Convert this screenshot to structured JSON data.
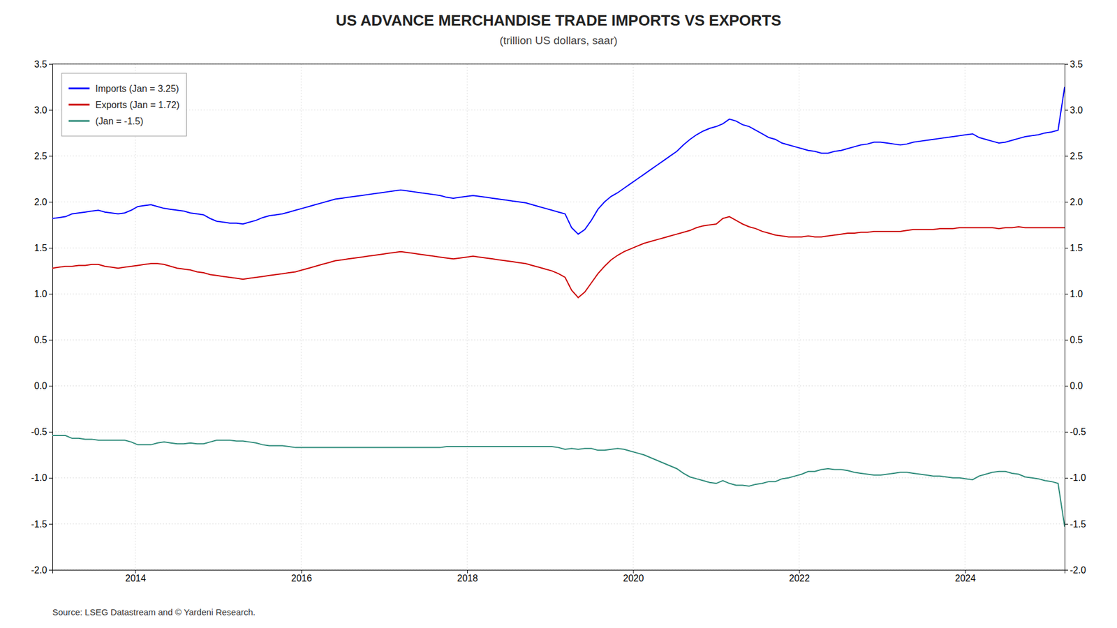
{
  "chart_data": {
    "type": "line",
    "title": "US ADVANCE MERCHANDISE TRADE IMPORTS VS EXPORTS",
    "subtitle": "(trillion US dollars, saar)",
    "annotations": [
      "Source: LSEG Datastream and © Yardeni Research."
    ],
    "x": [
      2013,
      2013.0792,
      2013.1584,
      2013.2377,
      2013.3169,
      2013.3961,
      2013.4753,
      2013.5545,
      2013.6338,
      2013.713,
      2013.7922,
      2013.8714,
      2013.9506,
      2014.0299,
      2014.1091,
      2014.1883,
      2014.2675,
      2014.3468,
      2014.426,
      2014.5052,
      2014.5844,
      2014.6636,
      2014.7429,
      2014.8221,
      2014.9013,
      2014.9805,
      2015.0597,
      2015.139,
      2015.2182,
      2015.2974,
      2015.3766,
      2015.4558,
      2015.5351,
      2015.6143,
      2015.6935,
      2015.7727,
      2015.8519,
      2015.9312,
      2016.0104,
      2016.0896,
      2016.1688,
      2016.2481,
      2016.3273,
      2016.4065,
      2016.4857,
      2016.5649,
      2016.6442,
      2016.7234,
      2016.8026,
      2016.8818,
      2016.961,
      2017.0403,
      2017.1195,
      2017.1987,
      2017.2779,
      2017.3571,
      2017.4364,
      2017.5156,
      2017.5948,
      2017.674,
      2017.7532,
      2017.8325,
      2017.9117,
      2017.9909,
      2018.0701,
      2018.1494,
      2018.2286,
      2018.3078,
      2018.387,
      2018.4662,
      2018.5455,
      2018.6247,
      2018.7039,
      2018.7831,
      2018.8623,
      2018.9416,
      2019.0208,
      2019.1,
      2019.1792,
      2019.2584,
      2019.3377,
      2019.4169,
      2019.4961,
      2019.5753,
      2019.6545,
      2019.7338,
      2019.813,
      2019.8922,
      2019.9714,
      2020.0506,
      2020.1299,
      2020.2091,
      2020.2883,
      2020.3675,
      2020.4468,
      2020.526,
      2020.6052,
      2020.6844,
      2020.7636,
      2020.8429,
      2020.9221,
      2021.0013,
      2021.0805,
      2021.1597,
      2021.239,
      2021.3182,
      2021.3974,
      2021.4766,
      2021.5558,
      2021.6351,
      2021.7143,
      2021.7935,
      2021.8727,
      2021.9519,
      2022.0312,
      2022.1104,
      2022.1896,
      2022.2688,
      2022.3481,
      2022.4273,
      2022.5065,
      2022.5857,
      2022.6649,
      2022.7442,
      2022.8234,
      2022.9026,
      2022.9818,
      2023.061,
      2023.1403,
      2023.2195,
      2023.2987,
      2023.3779,
      2023.4571,
      2023.5364,
      2023.6156,
      2023.6948,
      2023.774,
      2023.8532,
      2023.9325,
      2024.0117,
      2024.0909,
      2024.1701,
      2024.2494,
      2024.3286,
      2024.4078,
      2024.487,
      2024.5662,
      2024.6455,
      2024.7247,
      2024.8039,
      2024.8831,
      2024.9623,
      2025.0416,
      2025.1208,
      2025.2
    ],
    "series": [
      {
        "name": "Imports (Jan = 3.25)",
        "color": "#0000FF",
        "values": [
          1.82,
          1.83,
          1.84,
          1.87,
          1.88,
          1.89,
          1.9,
          1.91,
          1.89,
          1.88,
          1.87,
          1.88,
          1.91,
          1.95,
          1.96,
          1.97,
          1.95,
          1.93,
          1.92,
          1.91,
          1.9,
          1.88,
          1.87,
          1.86,
          1.82,
          1.79,
          1.78,
          1.77,
          1.77,
          1.76,
          1.78,
          1.8,
          1.83,
          1.85,
          1.86,
          1.87,
          1.89,
          1.91,
          1.93,
          1.95,
          1.97,
          1.99,
          2.01,
          2.03,
          2.04,
          2.05,
          2.06,
          2.07,
          2.08,
          2.09,
          2.1,
          2.11,
          2.12,
          2.13,
          2.12,
          2.11,
          2.1,
          2.09,
          2.08,
          2.07,
          2.05,
          2.04,
          2.05,
          2.06,
          2.07,
          2.06,
          2.05,
          2.04,
          2.03,
          2.02,
          2.01,
          2.0,
          1.99,
          1.97,
          1.95,
          1.93,
          1.91,
          1.89,
          1.87,
          1.72,
          1.65,
          1.7,
          1.8,
          1.92,
          2.0,
          2.06,
          2.1,
          2.15,
          2.2,
          2.25,
          2.3,
          2.35,
          2.4,
          2.45,
          2.5,
          2.55,
          2.62,
          2.68,
          2.73,
          2.77,
          2.8,
          2.82,
          2.85,
          2.9,
          2.88,
          2.84,
          2.82,
          2.78,
          2.74,
          2.7,
          2.68,
          2.64,
          2.62,
          2.6,
          2.58,
          2.56,
          2.55,
          2.53,
          2.53,
          2.55,
          2.56,
          2.58,
          2.6,
          2.62,
          2.63,
          2.65,
          2.65,
          2.64,
          2.63,
          2.62,
          2.63,
          2.65,
          2.66,
          2.67,
          2.68,
          2.69,
          2.7,
          2.71,
          2.72,
          2.73,
          2.74,
          2.7,
          2.68,
          2.66,
          2.64,
          2.65,
          2.67,
          2.69,
          2.71,
          2.72,
          2.73,
          2.75,
          2.76,
          2.78,
          3.25
        ]
      },
      {
        "name": "Exports (Jan = 1.72)",
        "color": "#CC0000",
        "values": [
          1.28,
          1.29,
          1.3,
          1.3,
          1.31,
          1.31,
          1.32,
          1.32,
          1.3,
          1.29,
          1.28,
          1.29,
          1.3,
          1.31,
          1.32,
          1.33,
          1.33,
          1.32,
          1.3,
          1.28,
          1.27,
          1.26,
          1.24,
          1.23,
          1.21,
          1.2,
          1.19,
          1.18,
          1.17,
          1.16,
          1.17,
          1.18,
          1.19,
          1.2,
          1.21,
          1.22,
          1.23,
          1.24,
          1.26,
          1.28,
          1.3,
          1.32,
          1.34,
          1.36,
          1.37,
          1.38,
          1.39,
          1.4,
          1.41,
          1.42,
          1.43,
          1.44,
          1.45,
          1.46,
          1.45,
          1.44,
          1.43,
          1.42,
          1.41,
          1.4,
          1.39,
          1.38,
          1.39,
          1.4,
          1.41,
          1.4,
          1.39,
          1.38,
          1.37,
          1.36,
          1.35,
          1.34,
          1.33,
          1.31,
          1.29,
          1.27,
          1.25,
          1.22,
          1.18,
          1.04,
          0.96,
          1.02,
          1.12,
          1.22,
          1.3,
          1.37,
          1.42,
          1.46,
          1.49,
          1.52,
          1.55,
          1.57,
          1.59,
          1.61,
          1.63,
          1.65,
          1.67,
          1.69,
          1.72,
          1.74,
          1.75,
          1.76,
          1.82,
          1.84,
          1.8,
          1.76,
          1.73,
          1.71,
          1.68,
          1.66,
          1.64,
          1.63,
          1.62,
          1.62,
          1.62,
          1.63,
          1.62,
          1.62,
          1.63,
          1.64,
          1.65,
          1.66,
          1.66,
          1.67,
          1.67,
          1.68,
          1.68,
          1.68,
          1.68,
          1.68,
          1.69,
          1.7,
          1.7,
          1.7,
          1.7,
          1.71,
          1.71,
          1.71,
          1.72,
          1.72,
          1.72,
          1.72,
          1.72,
          1.72,
          1.71,
          1.72,
          1.72,
          1.73,
          1.72,
          1.72,
          1.72,
          1.72,
          1.72,
          1.72,
          1.72
        ]
      },
      {
        "name": "(Jan = -1.5)",
        "color": "#2E8B7A",
        "values": [
          -0.54,
          -0.54,
          -0.54,
          -0.57,
          -0.57,
          -0.58,
          -0.58,
          -0.59,
          -0.59,
          -0.59,
          -0.59,
          -0.59,
          -0.61,
          -0.64,
          -0.64,
          -0.64,
          -0.62,
          -0.61,
          -0.62,
          -0.63,
          -0.63,
          -0.62,
          -0.63,
          -0.63,
          -0.61,
          -0.59,
          -0.59,
          -0.59,
          -0.6,
          -0.6,
          -0.61,
          -0.62,
          -0.64,
          -0.65,
          -0.65,
          -0.65,
          -0.66,
          -0.67,
          -0.67,
          -0.67,
          -0.67,
          -0.67,
          -0.67,
          -0.67,
          -0.67,
          -0.67,
          -0.67,
          -0.67,
          -0.67,
          -0.67,
          -0.67,
          -0.67,
          -0.67,
          -0.67,
          -0.67,
          -0.67,
          -0.67,
          -0.67,
          -0.67,
          -0.67,
          -0.66,
          -0.66,
          -0.66,
          -0.66,
          -0.66,
          -0.66,
          -0.66,
          -0.66,
          -0.66,
          -0.66,
          -0.66,
          -0.66,
          -0.66,
          -0.66,
          -0.66,
          -0.66,
          -0.66,
          -0.67,
          -0.69,
          -0.68,
          -0.69,
          -0.68,
          -0.68,
          -0.7,
          -0.7,
          -0.69,
          -0.68,
          -0.69,
          -0.71,
          -0.73,
          -0.75,
          -0.78,
          -0.81,
          -0.84,
          -0.87,
          -0.9,
          -0.95,
          -0.99,
          -1.01,
          -1.03,
          -1.05,
          -1.06,
          -1.03,
          -1.06,
          -1.08,
          -1.08,
          -1.09,
          -1.07,
          -1.06,
          -1.04,
          -1.04,
          -1.01,
          -1.0,
          -0.98,
          -0.96,
          -0.93,
          -0.93,
          -0.91,
          -0.9,
          -0.91,
          -0.91,
          -0.92,
          -0.94,
          -0.95,
          -0.96,
          -0.97,
          -0.97,
          -0.96,
          -0.95,
          -0.94,
          -0.94,
          -0.95,
          -0.96,
          -0.97,
          -0.98,
          -0.98,
          -0.99,
          -1.0,
          -1.0,
          -1.01,
          -1.02,
          -0.98,
          -0.96,
          -0.94,
          -0.93,
          -0.93,
          -0.95,
          -0.96,
          -0.99,
          -1.0,
          -1.01,
          -1.03,
          -1.04,
          -1.06,
          -1.53
        ]
      }
    ],
    "xlim": [
      2013,
      2025.2
    ],
    "xticks": [
      2014,
      2016,
      2018,
      2020,
      2022,
      2024
    ],
    "ylim": [
      -2.0,
      3.5
    ],
    "yticks": [
      {
        "value": -2.0,
        "label": "-2.0"
      },
      -1.5,
      {
        "value": -1.0,
        "label": "-1.0"
      },
      -0.5,
      {
        "value": 0.0,
        "label": "0.0"
      },
      0.5,
      {
        "value": 1.0,
        "label": "1.0"
      },
      1.5,
      {
        "value": 2.0,
        "label": "2.0"
      },
      2.5,
      {
        "value": 3.0,
        "label": "3.0"
      },
      3.5
    ],
    "y2lim": [
      -2.0,
      3.5
    ],
    "y2ticks": [
      {
        "value": -2.0,
        "label": "-2.0"
      },
      -1.5,
      {
        "value": -1.0,
        "label": "-1.0"
      },
      -0.5,
      {
        "value": 0.0,
        "label": "0.0"
      },
      0.5,
      {
        "value": 1.0,
        "label": "1.0"
      },
      1.5,
      {
        "value": 2.0,
        "label": "2.0"
      },
      2.5,
      {
        "value": 3.0,
        "label": "3.0"
      },
      3.5
    ],
    "grid": true,
    "legend": "upper left"
  }
}
